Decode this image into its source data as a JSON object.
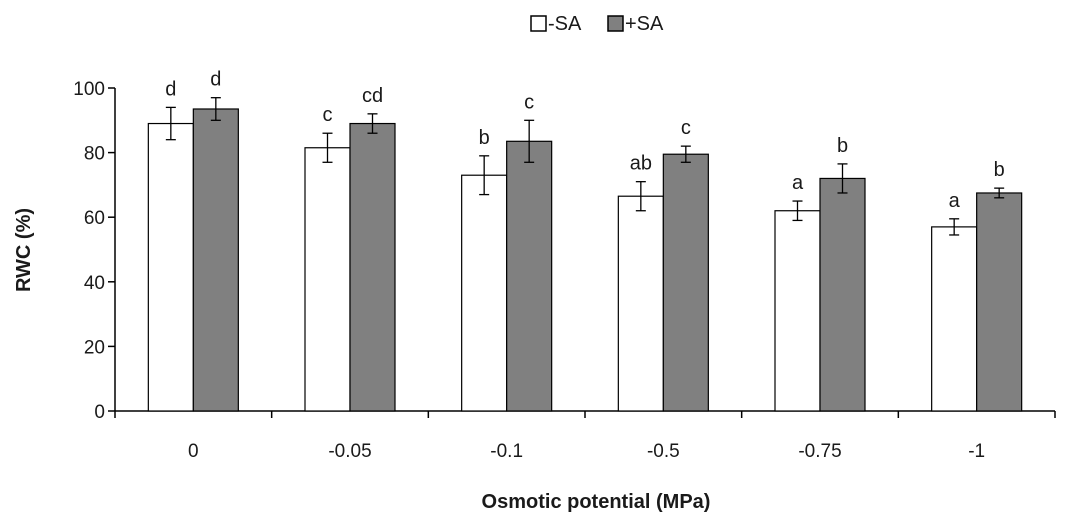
{
  "chart_data": {
    "type": "bar",
    "title": "",
    "xlabel": "Osmotic potential (MPa)",
    "ylabel": "RWC (%)",
    "ylim": [
      0,
      100
    ],
    "yticks": [
      0,
      20,
      40,
      60,
      80,
      100
    ],
    "grid": false,
    "legend_position": "top-center",
    "categories": [
      "0",
      "-0.05",
      "-0.1",
      "-0.5",
      "-0.75",
      "-1"
    ],
    "series": [
      {
        "name": "-SA",
        "color": "#ffffff",
        "values": [
          89,
          81.5,
          73,
          66.5,
          62,
          57
        ],
        "errors": [
          5,
          4.5,
          6,
          4.5,
          3,
          2.5
        ],
        "labels": [
          "d",
          "c",
          "b",
          "ab",
          "a",
          "a"
        ]
      },
      {
        "name": "+SA",
        "color": "#808080",
        "values": [
          93.5,
          89,
          83.5,
          79.5,
          72,
          67.5
        ],
        "errors": [
          3.5,
          3,
          6.5,
          2.5,
          4.5,
          1.5
        ],
        "labels": [
          "d",
          "cd",
          "c",
          "c",
          "b",
          "b"
        ]
      }
    ]
  }
}
